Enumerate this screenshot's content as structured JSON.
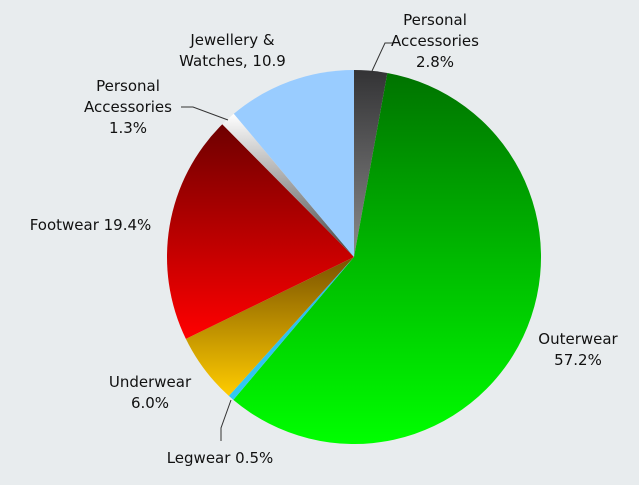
{
  "chart_data": {
    "type": "pie",
    "title": "",
    "background": "#e8ecee",
    "center": [
      354,
      257
    ],
    "radius": 187,
    "start_angle_deg": 0,
    "direction": "clockwise",
    "slices": [
      {
        "label": "Personal Accessories",
        "value": 2.8,
        "display": "2.8%",
        "color_top": "#333335",
        "color_bottom": "#8a8a8a"
      },
      {
        "label": "Outerwear",
        "value": 57.2,
        "display": "57.2%",
        "color_top": "#007300",
        "color_bottom": "#00ff00"
      },
      {
        "label": "Legwear",
        "value": 0.5,
        "display": "0.5%",
        "color_top": "#29b6e8",
        "color_bottom": "#33c8f5"
      },
      {
        "label": "Underwear",
        "value": 6.0,
        "display": "6.0%",
        "color_top": "#7a5200",
        "color_bottom": "#ffcc00"
      },
      {
        "label": "Footwear",
        "value": 19.4,
        "display": "19.4%",
        "color_top": "#6e0000",
        "color_bottom": "#ff0000"
      },
      {
        "label": "Personal Accessories",
        "value": 1.3,
        "display": "1.3%",
        "color_top": "#ffffff",
        "color_bottom": "#444444"
      },
      {
        "label": "Jewellery & Watches",
        "value": 10.9,
        "display": "10.9",
        "color_top": "#99ccff",
        "color_bottom": "#99ccff"
      }
    ]
  },
  "labels": {
    "personal_acc_top": {
      "line1": "Personal",
      "line2": "Accessories",
      "line3": "2.8%"
    },
    "jewellery": {
      "line1": "Jewellery &",
      "line2": "Watches, 10.9"
    },
    "personal_acc_left": {
      "line1": "Personal",
      "line2": "Accessories",
      "line3": "1.3%"
    },
    "footwear": {
      "line1": "Footwear 19.4%"
    },
    "underwear": {
      "line1": "Underwear",
      "line2": "6.0%"
    },
    "legwear": {
      "line1": "Legwear 0.5%"
    },
    "outerwear": {
      "line1": "Outerwear",
      "line2": "57.2%"
    }
  }
}
